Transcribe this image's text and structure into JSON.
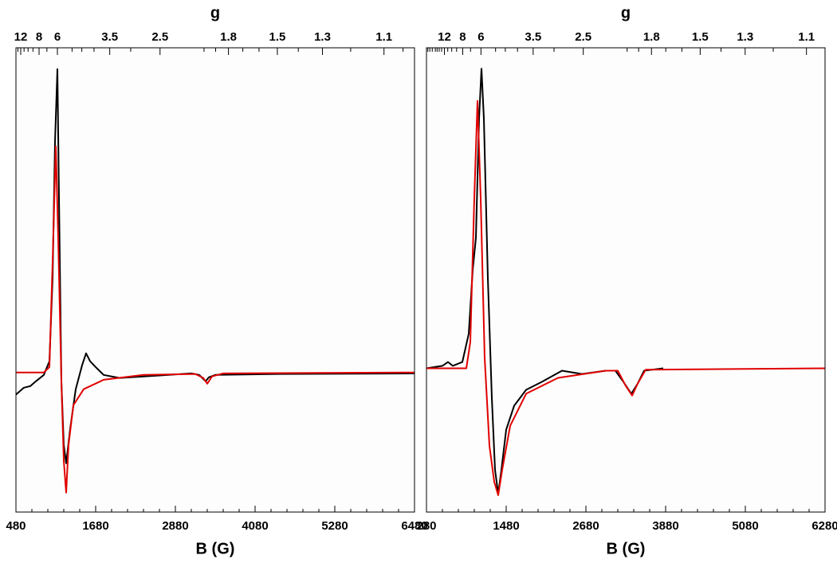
{
  "chart_data": [
    {
      "type": "line",
      "title": "g",
      "x_label": "B (G)",
      "xlim": [
        480,
        6480
      ],
      "xticks": [
        480,
        1680,
        2880,
        4080,
        5280,
        6480
      ],
      "xminor_ticks": [
        480,
        720,
        960,
        1200,
        1440,
        1680,
        1920,
        2160,
        2400,
        2640,
        2880,
        3120,
        3360,
        3600,
        3840,
        4080,
        4320,
        4560,
        4800,
        5040,
        5280,
        5520,
        5760,
        6000,
        6240,
        6480
      ],
      "x2lim": [
        13.8,
        1.022
      ],
      "x2scale": "reciprocal",
      "x2ticks": [
        12,
        8,
        6,
        3.5,
        2.5,
        1.8,
        1.5,
        1.3,
        1.1
      ],
      "x2minor_ticks": [
        13,
        11,
        10,
        9,
        7,
        5,
        4.5,
        4,
        3,
        2,
        1.9,
        1.7,
        1.6,
        1.4,
        1.2,
        1.05
      ],
      "ylim": [
        -0.46,
        1.07
      ],
      "series": [
        {
          "color": "#000000",
          "x": [
            480,
            600,
            696,
            780,
            900,
            984,
            1032,
            1068,
            1104,
            1128,
            1164,
            1200,
            1236,
            1296,
            1380,
            1476,
            1536,
            1596,
            1680,
            1800,
            2040,
            2640,
            3120,
            3240,
            3336,
            3384,
            3480,
            4440,
            6480
          ],
          "values": [
            -0.073,
            -0.05,
            -0.045,
            -0.029,
            -0.008,
            0.037,
            0.312,
            0.759,
            1.0,
            0.575,
            -0.029,
            -0.239,
            -0.299,
            -0.186,
            -0.055,
            0.024,
            0.063,
            0.037,
            0.018,
            -0.008,
            -0.018,
            -0.01,
            -0.003,
            -0.008,
            -0.029,
            -0.016,
            -0.008,
            -0.005,
            -0.003
          ]
        },
        {
          "color": "#e00000",
          "x": [
            480,
            900,
            984,
            1032,
            1080,
            1116,
            1164,
            1200,
            1236,
            1272,
            1344,
            1500,
            1800,
            2400,
            3180,
            3300,
            3360,
            3432,
            3600,
            6480
          ],
          "values": [
            0,
            0,
            0.018,
            0.365,
            0.745,
            0.444,
            -0.029,
            -0.291,
            -0.396,
            -0.239,
            -0.108,
            -0.055,
            -0.024,
            -0.008,
            -0.005,
            -0.018,
            -0.037,
            -0.013,
            -0.003,
            0
          ]
        }
      ]
    },
    {
      "type": "line",
      "title": "g",
      "x_label": "B (G)",
      "xlim": [
        280,
        6280
      ],
      "xticks": [
        280,
        1480,
        2680,
        3880,
        5080,
        6280
      ],
      "xminor_ticks": [
        280,
        520,
        760,
        1000,
        1240,
        1480,
        1720,
        1960,
        2200,
        2440,
        2680,
        2920,
        3160,
        3400,
        3640,
        3880,
        4120,
        4360,
        4600,
        4840,
        5080,
        5320,
        5560,
        5800,
        6040,
        6280
      ],
      "x2lim": [
        23.6,
        1.051
      ],
      "x2scale": "reciprocal",
      "x2ticks": [
        12,
        8,
        6,
        3.5,
        2.5,
        1.8,
        1.5,
        1.3,
        1.1
      ],
      "x2minor_ticks": [
        22,
        20,
        18,
        16,
        15,
        14,
        13,
        11,
        10,
        9,
        7,
        5,
        4.5,
        4,
        3,
        2,
        1.9,
        1.7,
        1.6,
        1.4,
        1.2
      ],
      "ylim": [
        -0.48,
        1.07
      ],
      "series": [
        {
          "color": "#000000",
          "x": [
            280,
            520,
            604,
            676,
            820,
            916,
            976,
            1024,
            1072,
            1108,
            1144,
            1204,
            1264,
            1312,
            1360,
            1408,
            1480,
            1600,
            1780,
            2020,
            2320,
            2620,
            2980,
            3124,
            3244,
            3364,
            3460,
            3556,
            3844
          ],
          "values": [
            0,
            0.008,
            0.021,
            0.008,
            0.021,
            0.115,
            0.328,
            0.435,
            0.835,
            1.0,
            0.835,
            0.301,
            -0.099,
            -0.339,
            -0.419,
            -0.339,
            -0.205,
            -0.125,
            -0.072,
            -0.045,
            -0.008,
            -0.019,
            -0.008,
            -0.008,
            -0.045,
            -0.085,
            -0.051,
            -0.008,
            0
          ]
        },
        {
          "color": "#e00000",
          "x": [
            280,
            880,
            940,
            1000,
            1048,
            1096,
            1156,
            1228,
            1300,
            1360,
            1420,
            1540,
            1780,
            2260,
            2980,
            3160,
            3280,
            3376,
            3460,
            3580,
            6280
          ],
          "values": [
            0,
            0,
            0.088,
            0.568,
            0.893,
            0.568,
            0.035,
            -0.259,
            -0.379,
            -0.424,
            -0.339,
            -0.192,
            -0.085,
            -0.032,
            -0.008,
            -0.008,
            -0.059,
            -0.091,
            -0.051,
            -0.005,
            0
          ]
        }
      ]
    }
  ]
}
